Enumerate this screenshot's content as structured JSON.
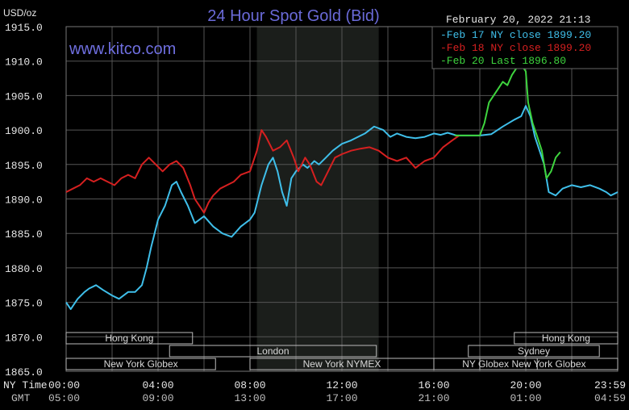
{
  "header": {
    "unit": "USD/oz",
    "title": "24 Hour Spot Gold (Bid)",
    "watermark": "www.kitco.com",
    "timestamp": "February 20, 2022 21:13"
  },
  "footer": {
    "ny_time_label": "NY Time",
    "gmt_label": "GMT"
  },
  "colors": {
    "background": "#000000",
    "blue": "#3fbfea",
    "red": "#d62020",
    "green": "#3ed43e",
    "grid": "#555555",
    "shade": "#1b1e1b"
  },
  "sessions": [
    {
      "name": "Hong Kong",
      "start": 0,
      "end": 5.5,
      "row": 0
    },
    {
      "name": "London",
      "start": 4.5,
      "end": 13.5,
      "row": 1
    },
    {
      "name": "New York Globex",
      "start": 0,
      "end": 6.5,
      "row": 2
    },
    {
      "name": "New York NYMEX",
      "start": 8.0,
      "end": 16.0,
      "row": 2
    },
    {
      "name": "NY Globex",
      "start": 16.0,
      "end": 20.5,
      "row": 2
    },
    {
      "name": "Hong Kong",
      "start": 19.5,
      "end": 24,
      "row": 0
    },
    {
      "name": "Sydney",
      "start": 17.5,
      "end": 23.2,
      "row": 1
    },
    {
      "name": "New York Globex",
      "start": 18.0,
      "end": 24,
      "row": 2
    }
  ],
  "chart_data": {
    "type": "line",
    "title": "24 Hour Spot Gold (Bid)",
    "ylabel": "USD/oz",
    "ylim": [
      1865,
      1915
    ],
    "xlim": [
      0,
      24
    ],
    "y_ticks": [
      "1915.0",
      "1910.0",
      "1905.0",
      "1900.0",
      "1895.0",
      "1890.0",
      "1885.0",
      "1880.0",
      "1875.0",
      "1870.0",
      "1865.0"
    ],
    "x_ticks": [
      "00:00",
      "04:00",
      "08:00",
      "12:00",
      "16:00",
      "20:00",
      "23:59"
    ],
    "gmt_ticks": [
      "05:00",
      "09:00",
      "13:00",
      "17:00",
      "21:00",
      "01:00",
      "04:59"
    ],
    "shaded_hours": [
      8.3,
      13.6
    ],
    "legend": {
      "placement": "top-right",
      "entries": [
        {
          "label": "Feb 17 NY close 1899.20",
          "color": "#3fbfea"
        },
        {
          "label": "Feb 18 NY close 1899.20",
          "color": "#d62020"
        },
        {
          "label": "Feb 20 Last 1896.80",
          "color": "#3ed43e"
        }
      ]
    },
    "series": [
      {
        "name": "Feb 17",
        "color": "#3fbfea",
        "points": [
          [
            0,
            1875
          ],
          [
            0.2,
            1874
          ],
          [
            0.5,
            1875.5
          ],
          [
            0.8,
            1876.5
          ],
          [
            1.0,
            1877
          ],
          [
            1.3,
            1877.5
          ],
          [
            1.6,
            1876.8
          ],
          [
            2.0,
            1876
          ],
          [
            2.3,
            1875.5
          ],
          [
            2.7,
            1876.5
          ],
          [
            3.0,
            1876.5
          ],
          [
            3.3,
            1877.5
          ],
          [
            3.5,
            1880
          ],
          [
            3.7,
            1883
          ],
          [
            4.0,
            1887
          ],
          [
            4.3,
            1889
          ],
          [
            4.6,
            1892
          ],
          [
            4.8,
            1892.5
          ],
          [
            5.0,
            1891
          ],
          [
            5.3,
            1889
          ],
          [
            5.6,
            1886.5
          ],
          [
            6.0,
            1887.5
          ],
          [
            6.4,
            1886
          ],
          [
            6.8,
            1885
          ],
          [
            7.2,
            1884.5
          ],
          [
            7.6,
            1886
          ],
          [
            8.0,
            1887
          ],
          [
            8.2,
            1888
          ],
          [
            8.5,
            1892
          ],
          [
            8.8,
            1895
          ],
          [
            9.0,
            1896
          ],
          [
            9.2,
            1894
          ],
          [
            9.4,
            1891
          ],
          [
            9.6,
            1889
          ],
          [
            9.8,
            1893
          ],
          [
            10.0,
            1894
          ],
          [
            10.3,
            1895
          ],
          [
            10.5,
            1894.5
          ],
          [
            10.8,
            1895.5
          ],
          [
            11.0,
            1895
          ],
          [
            11.3,
            1896
          ],
          [
            11.6,
            1897
          ],
          [
            12.0,
            1898
          ],
          [
            12.4,
            1898.5
          ],
          [
            12.7,
            1899
          ],
          [
            13.0,
            1899.5
          ],
          [
            13.4,
            1900.5
          ],
          [
            13.8,
            1900
          ],
          [
            14.1,
            1899
          ],
          [
            14.4,
            1899.5
          ],
          [
            14.8,
            1899
          ],
          [
            15.2,
            1898.8
          ],
          [
            15.6,
            1899
          ],
          [
            16.0,
            1899.5
          ],
          [
            16.3,
            1899.3
          ],
          [
            16.6,
            1899.6
          ],
          [
            17.0,
            1899.2
          ],
          [
            17.5,
            1899.2
          ],
          [
            18.0,
            1899.2
          ],
          [
            18.5,
            1899.4
          ],
          [
            19.0,
            1900.5
          ],
          [
            19.5,
            1901.5
          ],
          [
            19.8,
            1902
          ],
          [
            20.0,
            1903.5
          ],
          [
            20.2,
            1902
          ],
          [
            20.4,
            1899
          ],
          [
            20.6,
            1897
          ],
          [
            20.8,
            1895
          ],
          [
            21.0,
            1891
          ],
          [
            21.3,
            1890.5
          ],
          [
            21.6,
            1891.5
          ],
          [
            22.0,
            1892
          ],
          [
            22.4,
            1891.7
          ],
          [
            22.8,
            1892
          ],
          [
            23.2,
            1891.5
          ],
          [
            23.5,
            1891
          ],
          [
            23.7,
            1890.5
          ],
          [
            24,
            1891
          ]
        ]
      },
      {
        "name": "Feb 18",
        "color": "#d62020",
        "points": [
          [
            0,
            1891
          ],
          [
            0.3,
            1891.5
          ],
          [
            0.6,
            1892
          ],
          [
            0.9,
            1893
          ],
          [
            1.2,
            1892.5
          ],
          [
            1.5,
            1893
          ],
          [
            1.8,
            1892.5
          ],
          [
            2.1,
            1892
          ],
          [
            2.4,
            1893
          ],
          [
            2.7,
            1893.5
          ],
          [
            3.0,
            1893
          ],
          [
            3.3,
            1895
          ],
          [
            3.6,
            1896
          ],
          [
            3.9,
            1895
          ],
          [
            4.2,
            1894
          ],
          [
            4.5,
            1895
          ],
          [
            4.8,
            1895.5
          ],
          [
            5.1,
            1894.5
          ],
          [
            5.4,
            1892
          ],
          [
            5.6,
            1890
          ],
          [
            5.8,
            1889
          ],
          [
            6.0,
            1888
          ],
          [
            6.2,
            1889.5
          ],
          [
            6.4,
            1890.5
          ],
          [
            6.7,
            1891.5
          ],
          [
            7.0,
            1892
          ],
          [
            7.3,
            1892.5
          ],
          [
            7.6,
            1893.5
          ],
          [
            8.0,
            1894
          ],
          [
            8.3,
            1897
          ],
          [
            8.5,
            1900
          ],
          [
            8.7,
            1899
          ],
          [
            9.0,
            1897
          ],
          [
            9.3,
            1897.5
          ],
          [
            9.6,
            1898.5
          ],
          [
            9.9,
            1896
          ],
          [
            10.1,
            1894
          ],
          [
            10.4,
            1896
          ],
          [
            10.6,
            1895
          ],
          [
            10.9,
            1892.5
          ],
          [
            11.1,
            1892
          ],
          [
            11.4,
            1894
          ],
          [
            11.7,
            1896
          ],
          [
            12.0,
            1896.5
          ],
          [
            12.4,
            1897
          ],
          [
            12.8,
            1897.3
          ],
          [
            13.2,
            1897.5
          ],
          [
            13.6,
            1897
          ],
          [
            14.0,
            1896
          ],
          [
            14.4,
            1895.5
          ],
          [
            14.8,
            1896
          ],
          [
            15.2,
            1894.5
          ],
          [
            15.6,
            1895.5
          ],
          [
            16.0,
            1896
          ],
          [
            16.4,
            1897.5
          ],
          [
            16.8,
            1898.5
          ],
          [
            17.1,
            1899.2
          ]
        ]
      },
      {
        "name": "Feb 20",
        "color": "#3ed43e",
        "points": [
          [
            16.9,
            1899.2
          ],
          [
            17.3,
            1899.2
          ],
          [
            17.7,
            1899.2
          ],
          [
            18.0,
            1899.2
          ],
          [
            18.2,
            1901
          ],
          [
            18.4,
            1904
          ],
          [
            18.6,
            1905
          ],
          [
            18.8,
            1906
          ],
          [
            19.0,
            1907
          ],
          [
            19.2,
            1906.5
          ],
          [
            19.4,
            1908
          ],
          [
            19.6,
            1909
          ],
          [
            19.8,
            1909.5
          ],
          [
            20.0,
            1908.5
          ],
          [
            20.1,
            1904
          ],
          [
            20.3,
            1901
          ],
          [
            20.5,
            1899
          ],
          [
            20.7,
            1897
          ],
          [
            20.9,
            1893
          ],
          [
            21.1,
            1894
          ],
          [
            21.3,
            1896
          ],
          [
            21.5,
            1896.8
          ]
        ]
      }
    ]
  }
}
